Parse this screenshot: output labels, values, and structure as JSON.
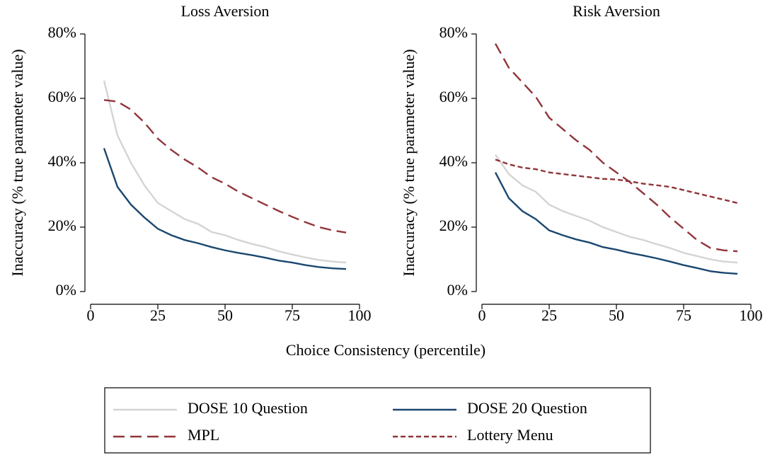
{
  "x_label": "Choice Consistency (percentile)",
  "chart_data": [
    {
      "type": "line",
      "title": "Loss Aversion",
      "y_label": "Inaccuracy (% true parameter value)",
      "x": [
        5,
        10,
        15,
        20,
        25,
        30,
        35,
        40,
        45,
        50,
        55,
        60,
        65,
        70,
        75,
        80,
        85,
        90,
        95
      ],
      "xlim": [
        0,
        100
      ],
      "xticks": [
        0,
        25,
        50,
        75,
        100
      ],
      "ylim": [
        0,
        80
      ],
      "yticks": [
        {
          "value": 0,
          "label": "0%"
        },
        {
          "value": 20,
          "label": "20%"
        },
        {
          "value": 40,
          "label": "40%"
        },
        {
          "value": 60,
          "label": "60%"
        },
        {
          "value": 80,
          "label": "80%"
        }
      ],
      "series": [
        {
          "name": "DOSE 10 Question",
          "color": "#d4d4d4",
          "style": "solid",
          "values": [
            65.5,
            48.5,
            40,
            33,
            27.5,
            25,
            22.5,
            21,
            18.5,
            17.5,
            16,
            14.8,
            13.8,
            12.5,
            11.5,
            10.6,
            9.8,
            9.3,
            9.0
          ]
        },
        {
          "name": "DOSE 20 Question",
          "color": "#1a476f",
          "style": "solid",
          "values": [
            44.5,
            32.5,
            27,
            23,
            19.5,
            17.5,
            16,
            15,
            13.8,
            12.8,
            12,
            11.3,
            10.5,
            9.6,
            9,
            8.2,
            7.6,
            7.2,
            7.0
          ]
        },
        {
          "name": "MPL",
          "color": "#90353b",
          "style": "longdash",
          "values": [
            59.5,
            59,
            56.5,
            52.5,
            47.5,
            44,
            41,
            38.5,
            35.5,
            33.5,
            31,
            29,
            27,
            25,
            23.2,
            21.5,
            20,
            19,
            18.3
          ]
        }
      ]
    },
    {
      "type": "line",
      "title": "Risk Aversion",
      "y_label": "Inaccuracy (% true parameter value)",
      "x": [
        5,
        10,
        15,
        20,
        25,
        30,
        35,
        40,
        45,
        50,
        55,
        60,
        65,
        70,
        75,
        80,
        85,
        90,
        95
      ],
      "xlim": [
        0,
        100
      ],
      "xticks": [
        0,
        25,
        50,
        75,
        100
      ],
      "ylim": [
        0,
        80
      ],
      "yticks": [
        {
          "value": 0,
          "label": "0%"
        },
        {
          "value": 20,
          "label": "20%"
        },
        {
          "value": 40,
          "label": "40%"
        },
        {
          "value": 60,
          "label": "60%"
        },
        {
          "value": 80,
          "label": "80%"
        }
      ],
      "series": [
        {
          "name": "DOSE 10 Question",
          "color": "#d4d4d4",
          "style": "solid",
          "values": [
            42.5,
            36.5,
            33,
            31,
            27,
            25,
            23.5,
            22,
            20,
            18.5,
            17,
            16,
            14.7,
            13.5,
            12,
            11,
            10,
            9.3,
            9.0
          ]
        },
        {
          "name": "DOSE 20 Question",
          "color": "#1a476f",
          "style": "solid",
          "values": [
            37,
            29,
            25,
            22.5,
            19,
            17.5,
            16.2,
            15.2,
            13.8,
            13,
            12,
            11.2,
            10.3,
            9.3,
            8.2,
            7.3,
            6.3,
            5.8,
            5.5
          ]
        },
        {
          "name": "MPL",
          "color": "#90353b",
          "style": "longdash",
          "values": [
            77,
            69.5,
            65,
            60.5,
            54,
            50.5,
            47,
            44,
            40,
            37,
            34,
            30.5,
            27,
            23,
            19.5,
            16,
            13.5,
            12.8,
            12.5
          ]
        },
        {
          "name": "Lottery Menu",
          "color": "#90353b",
          "style": "shortdash",
          "values": [
            41,
            39.5,
            38.5,
            38,
            37,
            36.5,
            36,
            35.5,
            35,
            34.8,
            34.2,
            33.5,
            33,
            32.5,
            31.5,
            30.5,
            29.5,
            28.5,
            27.5
          ]
        }
      ]
    }
  ]
}
